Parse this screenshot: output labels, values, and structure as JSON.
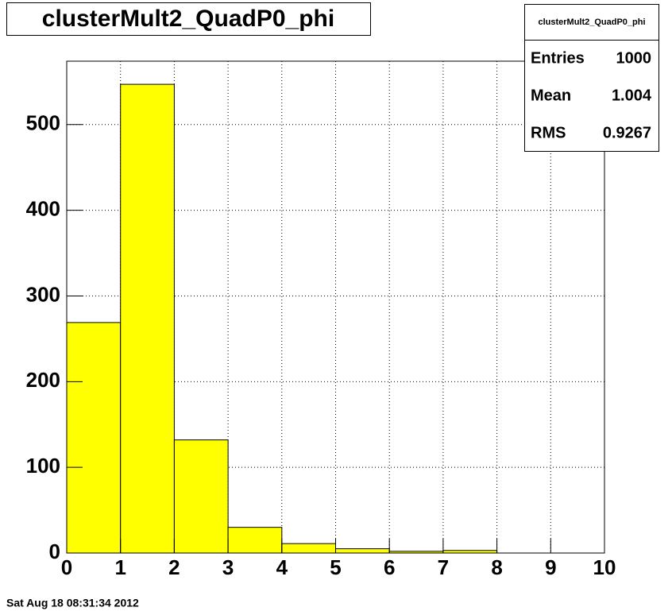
{
  "chart_data": {
    "type": "histogram",
    "title": "clusterMult2_QuadP0_phi",
    "bins": [
      0,
      1,
      2,
      3,
      4,
      5,
      6,
      7,
      8,
      9,
      10
    ],
    "values": [
      269,
      547,
      132,
      30,
      11,
      5,
      2,
      3,
      0,
      0
    ],
    "color": "#ffff00",
    "xlim": [
      0,
      10
    ],
    "ylim": [
      0,
      574
    ],
    "xticks": [
      0,
      1,
      2,
      3,
      4,
      5,
      6,
      7,
      8,
      9,
      10
    ],
    "yticks": [
      0,
      100,
      200,
      300,
      400,
      500
    ],
    "grid": true,
    "stats": {
      "title": "clusterMult2_QuadP0_phi",
      "rows": [
        [
          "Entries",
          "1000"
        ],
        [
          "Mean",
          "1.004"
        ],
        [
          "RMS",
          "0.9267"
        ]
      ]
    },
    "timestamp": "Sat Aug 18 08:31:34 2012"
  }
}
